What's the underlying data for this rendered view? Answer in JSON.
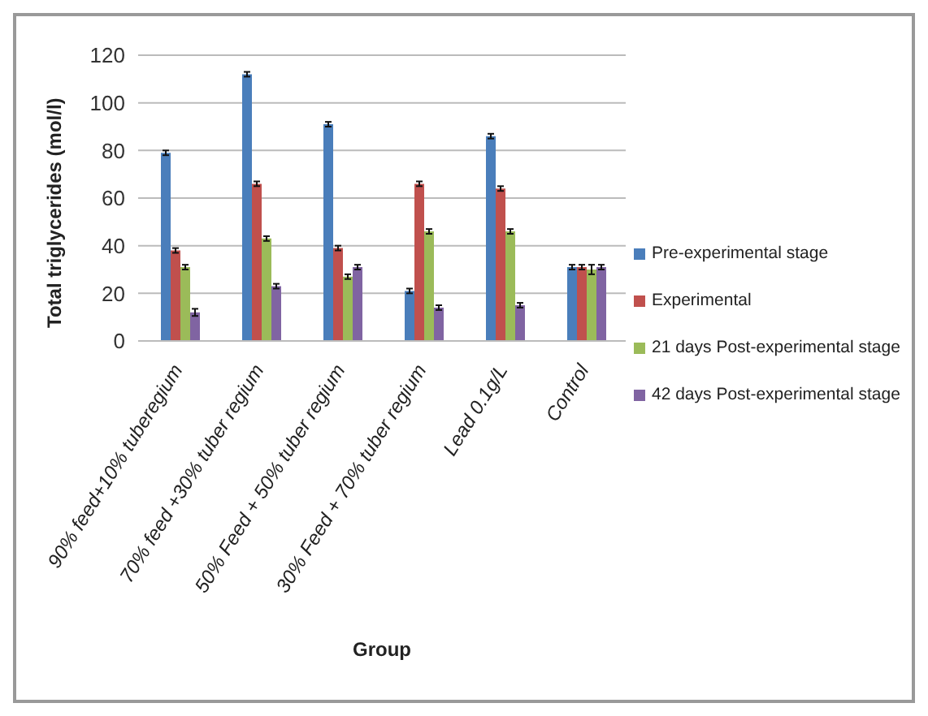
{
  "chart_data": {
    "type": "bar",
    "xlabel": "Group",
    "ylabel": "Total triglycerides (mol/l)",
    "categories": [
      "90% feed+10% tuberegium",
      "70% feed +30% tuber regium",
      "50% Feed + 50% tuber regium",
      "30% Feed + 70% tuber regium",
      "Lead 0.1g/L",
      "Control"
    ],
    "series": [
      {
        "name": "Pre-experimental stage",
        "color": "#4a7ebb",
        "values": [
          79,
          112,
          91,
          21,
          86,
          31
        ],
        "errors": [
          1,
          1,
          1,
          1,
          1,
          1
        ]
      },
      {
        "name": "Experimental",
        "color": "#c0504d",
        "values": [
          38,
          66,
          39,
          66,
          64,
          31
        ],
        "errors": [
          1,
          1,
          1,
          1,
          1,
          1
        ]
      },
      {
        "name": "21 days Post-experimental stage",
        "color": "#9bbb59",
        "values": [
          31,
          43,
          27,
          46,
          46,
          30
        ],
        "errors": [
          1,
          1,
          1,
          1,
          1,
          2
        ]
      },
      {
        "name": "42 days Post-experimental stage",
        "color": "#8064a2",
        "values": [
          12,
          23,
          31,
          14,
          15,
          31
        ],
        "errors": [
          1.5,
          1,
          1,
          1,
          1,
          1
        ]
      }
    ],
    "ylim": [
      0,
      120
    ],
    "yticks": [
      0,
      20,
      40,
      60,
      80,
      100,
      120
    ],
    "grid": "y",
    "legend": "right"
  }
}
